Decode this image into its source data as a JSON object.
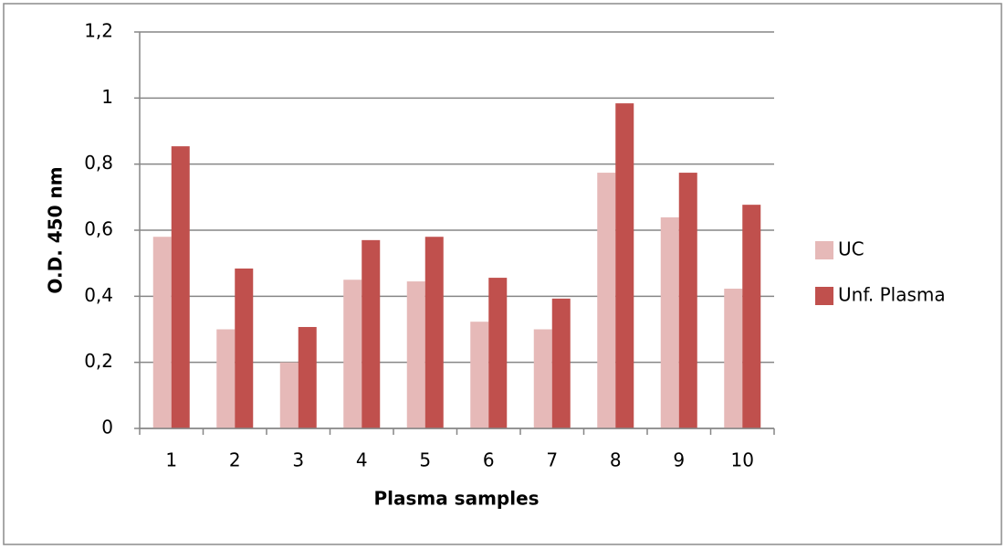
{
  "chart_data": {
    "type": "bar",
    "x_label": "Plasma samples",
    "y_label": "O.D. 450 nm",
    "categories": [
      "1",
      "2",
      "3",
      "4",
      "5",
      "6",
      "7",
      "8",
      "9",
      "10"
    ],
    "series": [
      {
        "name": "UC",
        "color": "#e6b9b8",
        "values": [
          0.58,
          0.3,
          0.2,
          0.45,
          0.445,
          0.323,
          0.3,
          0.774,
          0.639,
          0.423
        ]
      },
      {
        "name": "Unf. Plasma",
        "color": "#c0504d",
        "values": [
          0.854,
          0.484,
          0.307,
          0.57,
          0.58,
          0.456,
          0.393,
          0.984,
          0.774,
          0.677
        ]
      }
    ],
    "ylim": [
      0,
      1.2
    ],
    "yticks": [
      0,
      {
        "value": 0.2,
        "label": "0,2"
      },
      {
        "value": 0.4,
        "label": "0,4"
      },
      {
        "value": 0.6,
        "label": "0,6"
      },
      {
        "value": 0.8,
        "label": "0,8"
      },
      1,
      {
        "value": 1.2,
        "label": "1,2"
      }
    ],
    "grid": true,
    "legend": "right"
  }
}
